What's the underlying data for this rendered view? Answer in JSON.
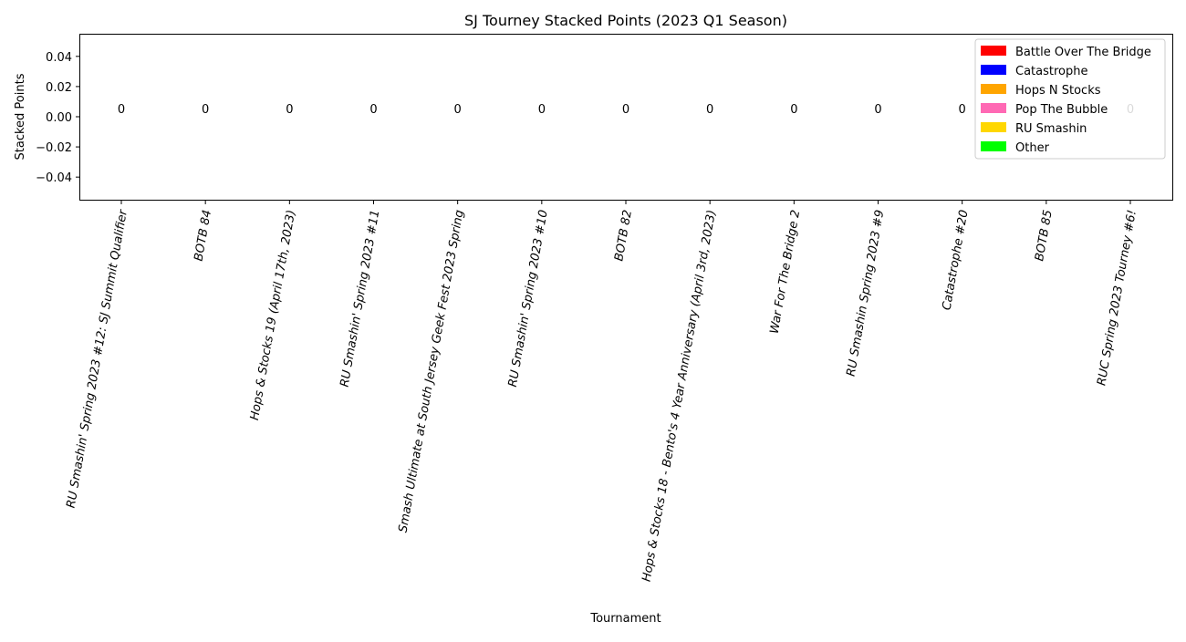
{
  "chart_data": {
    "type": "bar",
    "stacked": true,
    "title": "SJ Tourney Stacked Points (2023 Q1 Season)",
    "xlabel": "Tournament",
    "ylabel": "Stacked Points",
    "ylim": [
      -0.055,
      0.055
    ],
    "yticks": [
      0.04,
      0.02,
      0.0,
      -0.02,
      -0.04
    ],
    "ytick_labels": [
      "0.04",
      "0.02",
      "0.00",
      "−0.02",
      "−0.04"
    ],
    "grid": false,
    "legend_position": "top-right",
    "categories": [
      "RU Smashin' Spring 2023 #12: SJ Summit Qualifier",
      "BOTB 84",
      "Hops & Stocks 19 (April 17th, 2023)",
      "RU Smashin' Spring 2023 #11",
      "Smash Ultimate at South Jersey Geek Fest 2023 Spring",
      "RU Smashin' Spring 2023 #10",
      "BOTB 82",
      "Hops & Stocks 18 - Bento's 4 Year Anniversary (April 3rd, 2023)",
      "War For The Bridge 2",
      "RU Smashin Spring 2023 #9",
      "Catastrophe #20",
      "BOTB 85",
      "RUC Spring 2023 Tourney #6!"
    ],
    "totals": [
      "0",
      "0",
      "0",
      "0",
      "0",
      "0",
      "0",
      "0",
      "0",
      "0",
      "0",
      "0",
      "0"
    ],
    "series": [
      {
        "name": "Battle Over The Bridge",
        "color": "#ff0000",
        "values": [
          0,
          0,
          0,
          0,
          0,
          0,
          0,
          0,
          0,
          0,
          0,
          0,
          0
        ]
      },
      {
        "name": "Catastrophe",
        "color": "#0000ff",
        "values": [
          0,
          0,
          0,
          0,
          0,
          0,
          0,
          0,
          0,
          0,
          0,
          0,
          0
        ]
      },
      {
        "name": "Hops N Stocks",
        "color": "#ffa500",
        "values": [
          0,
          0,
          0,
          0,
          0,
          0,
          0,
          0,
          0,
          0,
          0,
          0,
          0
        ]
      },
      {
        "name": "Pop The Bubble",
        "color": "#ff69b4",
        "values": [
          0,
          0,
          0,
          0,
          0,
          0,
          0,
          0,
          0,
          0,
          0,
          0,
          0
        ]
      },
      {
        "name": "RU Smashin",
        "color": "#ffd700",
        "values": [
          0,
          0,
          0,
          0,
          0,
          0,
          0,
          0,
          0,
          0,
          0,
          0,
          0
        ]
      },
      {
        "name": "Other",
        "color": "#00ff00",
        "values": [
          0,
          0,
          0,
          0,
          0,
          0,
          0,
          0,
          0,
          0,
          0,
          0,
          0
        ]
      }
    ]
  }
}
